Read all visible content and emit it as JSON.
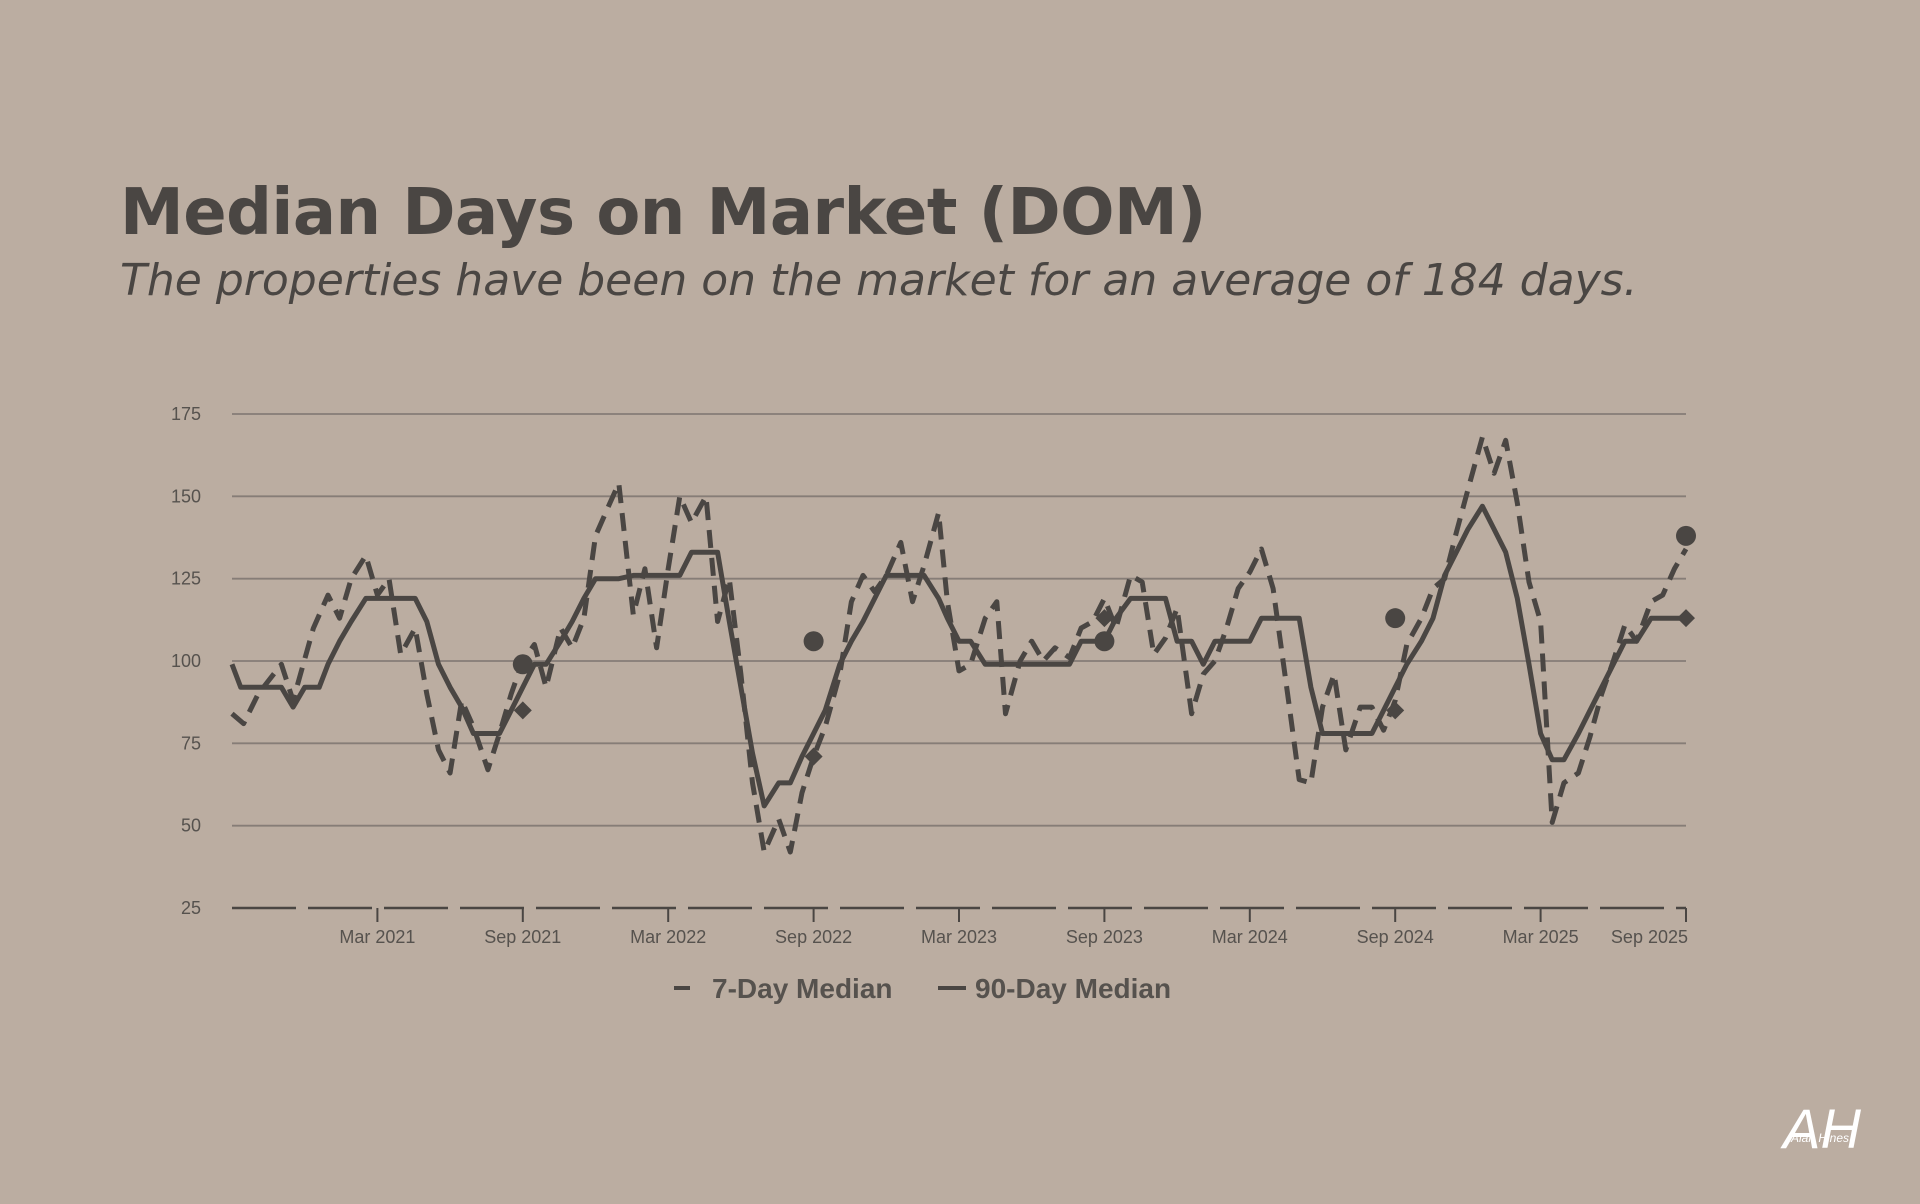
{
  "header": {
    "title": "Median Days on Market (DOM)",
    "subtitle": "The properties have been on the market for an average of 184 days."
  },
  "logo": {
    "text": "AH",
    "script_text": "Alan Hines"
  },
  "colors": {
    "background": "#bbada1",
    "text": "#4a4643",
    "line": "#4a4643",
    "grid": "#7d7570"
  },
  "chart_data": {
    "type": "line",
    "title": "",
    "xlabel": "",
    "ylabel": "",
    "x_range": [
      2020.67,
      2025.67
    ],
    "ylim": [
      25,
      175
    ],
    "y_ticks": [
      25,
      50,
      75,
      100,
      125,
      150,
      175
    ],
    "grid": true,
    "x_ticks": [
      {
        "label": "Mar 2021",
        "x": 2021.17
      },
      {
        "label": "Sep 2021",
        "x": 2021.67
      },
      {
        "label": "Mar 2022",
        "x": 2022.17
      },
      {
        "label": "Sep 2022",
        "x": 2022.67
      },
      {
        "label": "Mar 2023",
        "x": 2023.17
      },
      {
        "label": "Sep 2023",
        "x": 2023.67
      },
      {
        "label": "Mar 2024",
        "x": 2024.17
      },
      {
        "label": "Sep 2024",
        "x": 2024.67
      },
      {
        "label": "Mar 2025",
        "x": 2025.17
      },
      {
        "label": "Sep 2025",
        "x": 2025.67
      }
    ],
    "legend": {
      "position": "bottom-center",
      "entries": [
        "7-Day Median",
        "90-Day Median"
      ]
    },
    "series": [
      {
        "name": "7-Day Median",
        "style": "dashed",
        "points": [
          [
            2020.67,
            84
          ],
          [
            2020.71,
            81
          ],
          [
            2020.76,
            90
          ],
          [
            2020.84,
            99
          ],
          [
            2020.88,
            88
          ],
          [
            2020.95,
            110
          ],
          [
            2021.0,
            120
          ],
          [
            2021.04,
            113
          ],
          [
            2021.08,
            125
          ],
          [
            2021.13,
            132
          ],
          [
            2021.17,
            120
          ],
          [
            2021.21,
            125
          ],
          [
            2021.25,
            102
          ],
          [
            2021.3,
            110
          ],
          [
            2021.34,
            90
          ],
          [
            2021.38,
            73
          ],
          [
            2021.42,
            66
          ],
          [
            2021.46,
            88
          ],
          [
            2021.5,
            80
          ],
          [
            2021.55,
            67
          ],
          [
            2021.59,
            78
          ],
          [
            2021.63,
            90
          ],
          [
            2021.67,
            100
          ],
          [
            2021.71,
            105
          ],
          [
            2021.75,
            92
          ],
          [
            2021.8,
            110
          ],
          [
            2021.84,
            104
          ],
          [
            2021.88,
            113
          ],
          [
            2021.92,
            138
          ],
          [
            2021.97,
            148
          ],
          [
            2022.0,
            154
          ],
          [
            2022.05,
            114
          ],
          [
            2022.09,
            128
          ],
          [
            2022.13,
            104
          ],
          [
            2022.17,
            128
          ],
          [
            2022.21,
            150
          ],
          [
            2022.25,
            142
          ],
          [
            2022.3,
            150
          ],
          [
            2022.34,
            112
          ],
          [
            2022.38,
            125
          ],
          [
            2022.42,
            96
          ],
          [
            2022.46,
            63
          ],
          [
            2022.5,
            42
          ],
          [
            2022.55,
            52
          ],
          [
            2022.59,
            42
          ],
          [
            2022.63,
            60
          ],
          [
            2022.67,
            71
          ],
          [
            2022.71,
            80
          ],
          [
            2022.76,
            96
          ],
          [
            2022.8,
            118
          ],
          [
            2022.84,
            126
          ],
          [
            2022.88,
            121
          ],
          [
            2022.92,
            126
          ],
          [
            2022.97,
            136
          ],
          [
            2023.01,
            118
          ],
          [
            2023.05,
            129
          ],
          [
            2023.1,
            145
          ],
          [
            2023.13,
            118
          ],
          [
            2023.17,
            97
          ],
          [
            2023.21,
            99
          ],
          [
            2023.26,
            113
          ],
          [
            2023.3,
            118
          ],
          [
            2023.33,
            84
          ],
          [
            2023.38,
            100
          ],
          [
            2023.42,
            106
          ],
          [
            2023.46,
            100
          ],
          [
            2023.5,
            104
          ],
          [
            2023.55,
            101
          ],
          [
            2023.59,
            110
          ],
          [
            2023.63,
            112
          ],
          [
            2023.67,
            119
          ],
          [
            2023.71,
            110
          ],
          [
            2023.76,
            126
          ],
          [
            2023.8,
            124
          ],
          [
            2023.84,
            102
          ],
          [
            2023.88,
            107
          ],
          [
            2023.92,
            116
          ],
          [
            2023.97,
            84
          ],
          [
            2024.01,
            96
          ],
          [
            2024.05,
            100
          ],
          [
            2024.09,
            110
          ],
          [
            2024.13,
            122
          ],
          [
            2024.17,
            127
          ],
          [
            2024.21,
            134
          ],
          [
            2024.25,
            122
          ],
          [
            2024.3,
            90
          ],
          [
            2024.34,
            64
          ],
          [
            2024.38,
            63
          ],
          [
            2024.42,
            86
          ],
          [
            2024.46,
            96
          ],
          [
            2024.5,
            73
          ],
          [
            2024.55,
            86
          ],
          [
            2024.59,
            86
          ],
          [
            2024.63,
            79
          ],
          [
            2024.67,
            88
          ],
          [
            2024.71,
            105
          ],
          [
            2024.76,
            113
          ],
          [
            2024.8,
            122
          ],
          [
            2024.84,
            125
          ],
          [
            2024.88,
            139
          ],
          [
            2024.92,
            152
          ],
          [
            2024.97,
            168
          ],
          [
            2025.01,
            157
          ],
          [
            2025.05,
            167
          ],
          [
            2025.09,
            148
          ],
          [
            2025.13,
            124
          ],
          [
            2025.17,
            112
          ],
          [
            2025.21,
            51
          ],
          [
            2025.25,
            63
          ],
          [
            2025.3,
            66
          ],
          [
            2025.34,
            77
          ],
          [
            2025.38,
            90
          ],
          [
            2025.42,
            100
          ],
          [
            2025.46,
            111
          ],
          [
            2025.5,
            106
          ],
          [
            2025.55,
            118
          ],
          [
            2025.59,
            120
          ],
          [
            2025.63,
            128
          ],
          [
            2025.67,
            134
          ]
        ],
        "markers": [
          [
            2021.67,
            85
          ],
          [
            2022.67,
            71
          ],
          [
            2023.67,
            113
          ],
          [
            2024.67,
            85
          ],
          [
            2025.67,
            113
          ]
        ]
      },
      {
        "name": "90-Day Median",
        "style": "solid",
        "points": [
          [
            2020.67,
            99
          ],
          [
            2020.7,
            92
          ],
          [
            2020.84,
            92
          ],
          [
            2020.88,
            86
          ],
          [
            2020.92,
            92
          ],
          [
            2020.97,
            92
          ],
          [
            2021.0,
            99
          ],
          [
            2021.04,
            106
          ],
          [
            2021.08,
            112
          ],
          [
            2021.13,
            119
          ],
          [
            2021.17,
            119
          ],
          [
            2021.21,
            119
          ],
          [
            2021.3,
            119
          ],
          [
            2021.34,
            112
          ],
          [
            2021.38,
            99
          ],
          [
            2021.42,
            92
          ],
          [
            2021.46,
            86
          ],
          [
            2021.5,
            78
          ],
          [
            2021.59,
            78
          ],
          [
            2021.63,
            85
          ],
          [
            2021.67,
            92
          ],
          [
            2021.71,
            99
          ],
          [
            2021.75,
            99
          ],
          [
            2021.8,
            106
          ],
          [
            2021.84,
            112
          ],
          [
            2021.88,
            119
          ],
          [
            2021.92,
            125
          ],
          [
            2021.97,
            125
          ],
          [
            2022.0,
            125
          ],
          [
            2022.05,
            126
          ],
          [
            2022.13,
            126
          ],
          [
            2022.17,
            126
          ],
          [
            2022.21,
            126
          ],
          [
            2022.25,
            133
          ],
          [
            2022.3,
            133
          ],
          [
            2022.34,
            133
          ],
          [
            2022.38,
            112
          ],
          [
            2022.42,
            92
          ],
          [
            2022.46,
            72
          ],
          [
            2022.5,
            56
          ],
          [
            2022.55,
            63
          ],
          [
            2022.59,
            63
          ],
          [
            2022.63,
            71
          ],
          [
            2022.67,
            78
          ],
          [
            2022.71,
            85
          ],
          [
            2022.76,
            99
          ],
          [
            2022.8,
            106
          ],
          [
            2022.84,
            112
          ],
          [
            2022.88,
            119
          ],
          [
            2022.92,
            126
          ],
          [
            2022.97,
            126
          ],
          [
            2023.01,
            126
          ],
          [
            2023.05,
            126
          ],
          [
            2023.1,
            119
          ],
          [
            2023.13,
            113
          ],
          [
            2023.17,
            106
          ],
          [
            2023.21,
            106
          ],
          [
            2023.26,
            99
          ],
          [
            2023.3,
            99
          ],
          [
            2023.42,
            99
          ],
          [
            2023.55,
            99
          ],
          [
            2023.59,
            106
          ],
          [
            2023.63,
            106
          ],
          [
            2023.67,
            106
          ],
          [
            2023.71,
            113
          ],
          [
            2023.76,
            119
          ],
          [
            2023.8,
            119
          ],
          [
            2023.84,
            119
          ],
          [
            2023.88,
            119
          ],
          [
            2023.92,
            106
          ],
          [
            2023.97,
            106
          ],
          [
            2024.01,
            99
          ],
          [
            2024.05,
            106
          ],
          [
            2024.09,
            106
          ],
          [
            2024.13,
            106
          ],
          [
            2024.17,
            106
          ],
          [
            2024.21,
            113
          ],
          [
            2024.25,
            113
          ],
          [
            2024.3,
            113
          ],
          [
            2024.34,
            113
          ],
          [
            2024.38,
            92
          ],
          [
            2024.42,
            78
          ],
          [
            2024.46,
            78
          ],
          [
            2024.5,
            78
          ],
          [
            2024.55,
            78
          ],
          [
            2024.59,
            78
          ],
          [
            2024.63,
            85
          ],
          [
            2024.67,
            92
          ],
          [
            2024.71,
            99
          ],
          [
            2024.76,
            106
          ],
          [
            2024.8,
            113
          ],
          [
            2024.84,
            126
          ],
          [
            2024.88,
            133
          ],
          [
            2024.92,
            140
          ],
          [
            2024.97,
            147
          ],
          [
            2025.01,
            140
          ],
          [
            2025.05,
            133
          ],
          [
            2025.09,
            119
          ],
          [
            2025.13,
            99
          ],
          [
            2025.17,
            78
          ],
          [
            2025.21,
            70
          ],
          [
            2025.25,
            70
          ],
          [
            2025.3,
            78
          ],
          [
            2025.34,
            85
          ],
          [
            2025.38,
            92
          ],
          [
            2025.42,
            99
          ],
          [
            2025.46,
            106
          ],
          [
            2025.5,
            106
          ],
          [
            2025.55,
            113
          ],
          [
            2025.59,
            113
          ],
          [
            2025.67,
            113
          ]
        ],
        "markers": [
          [
            2021.67,
            99
          ],
          [
            2022.67,
            106
          ],
          [
            2023.67,
            106
          ],
          [
            2024.67,
            113
          ],
          [
            2025.67,
            138
          ]
        ]
      }
    ]
  }
}
